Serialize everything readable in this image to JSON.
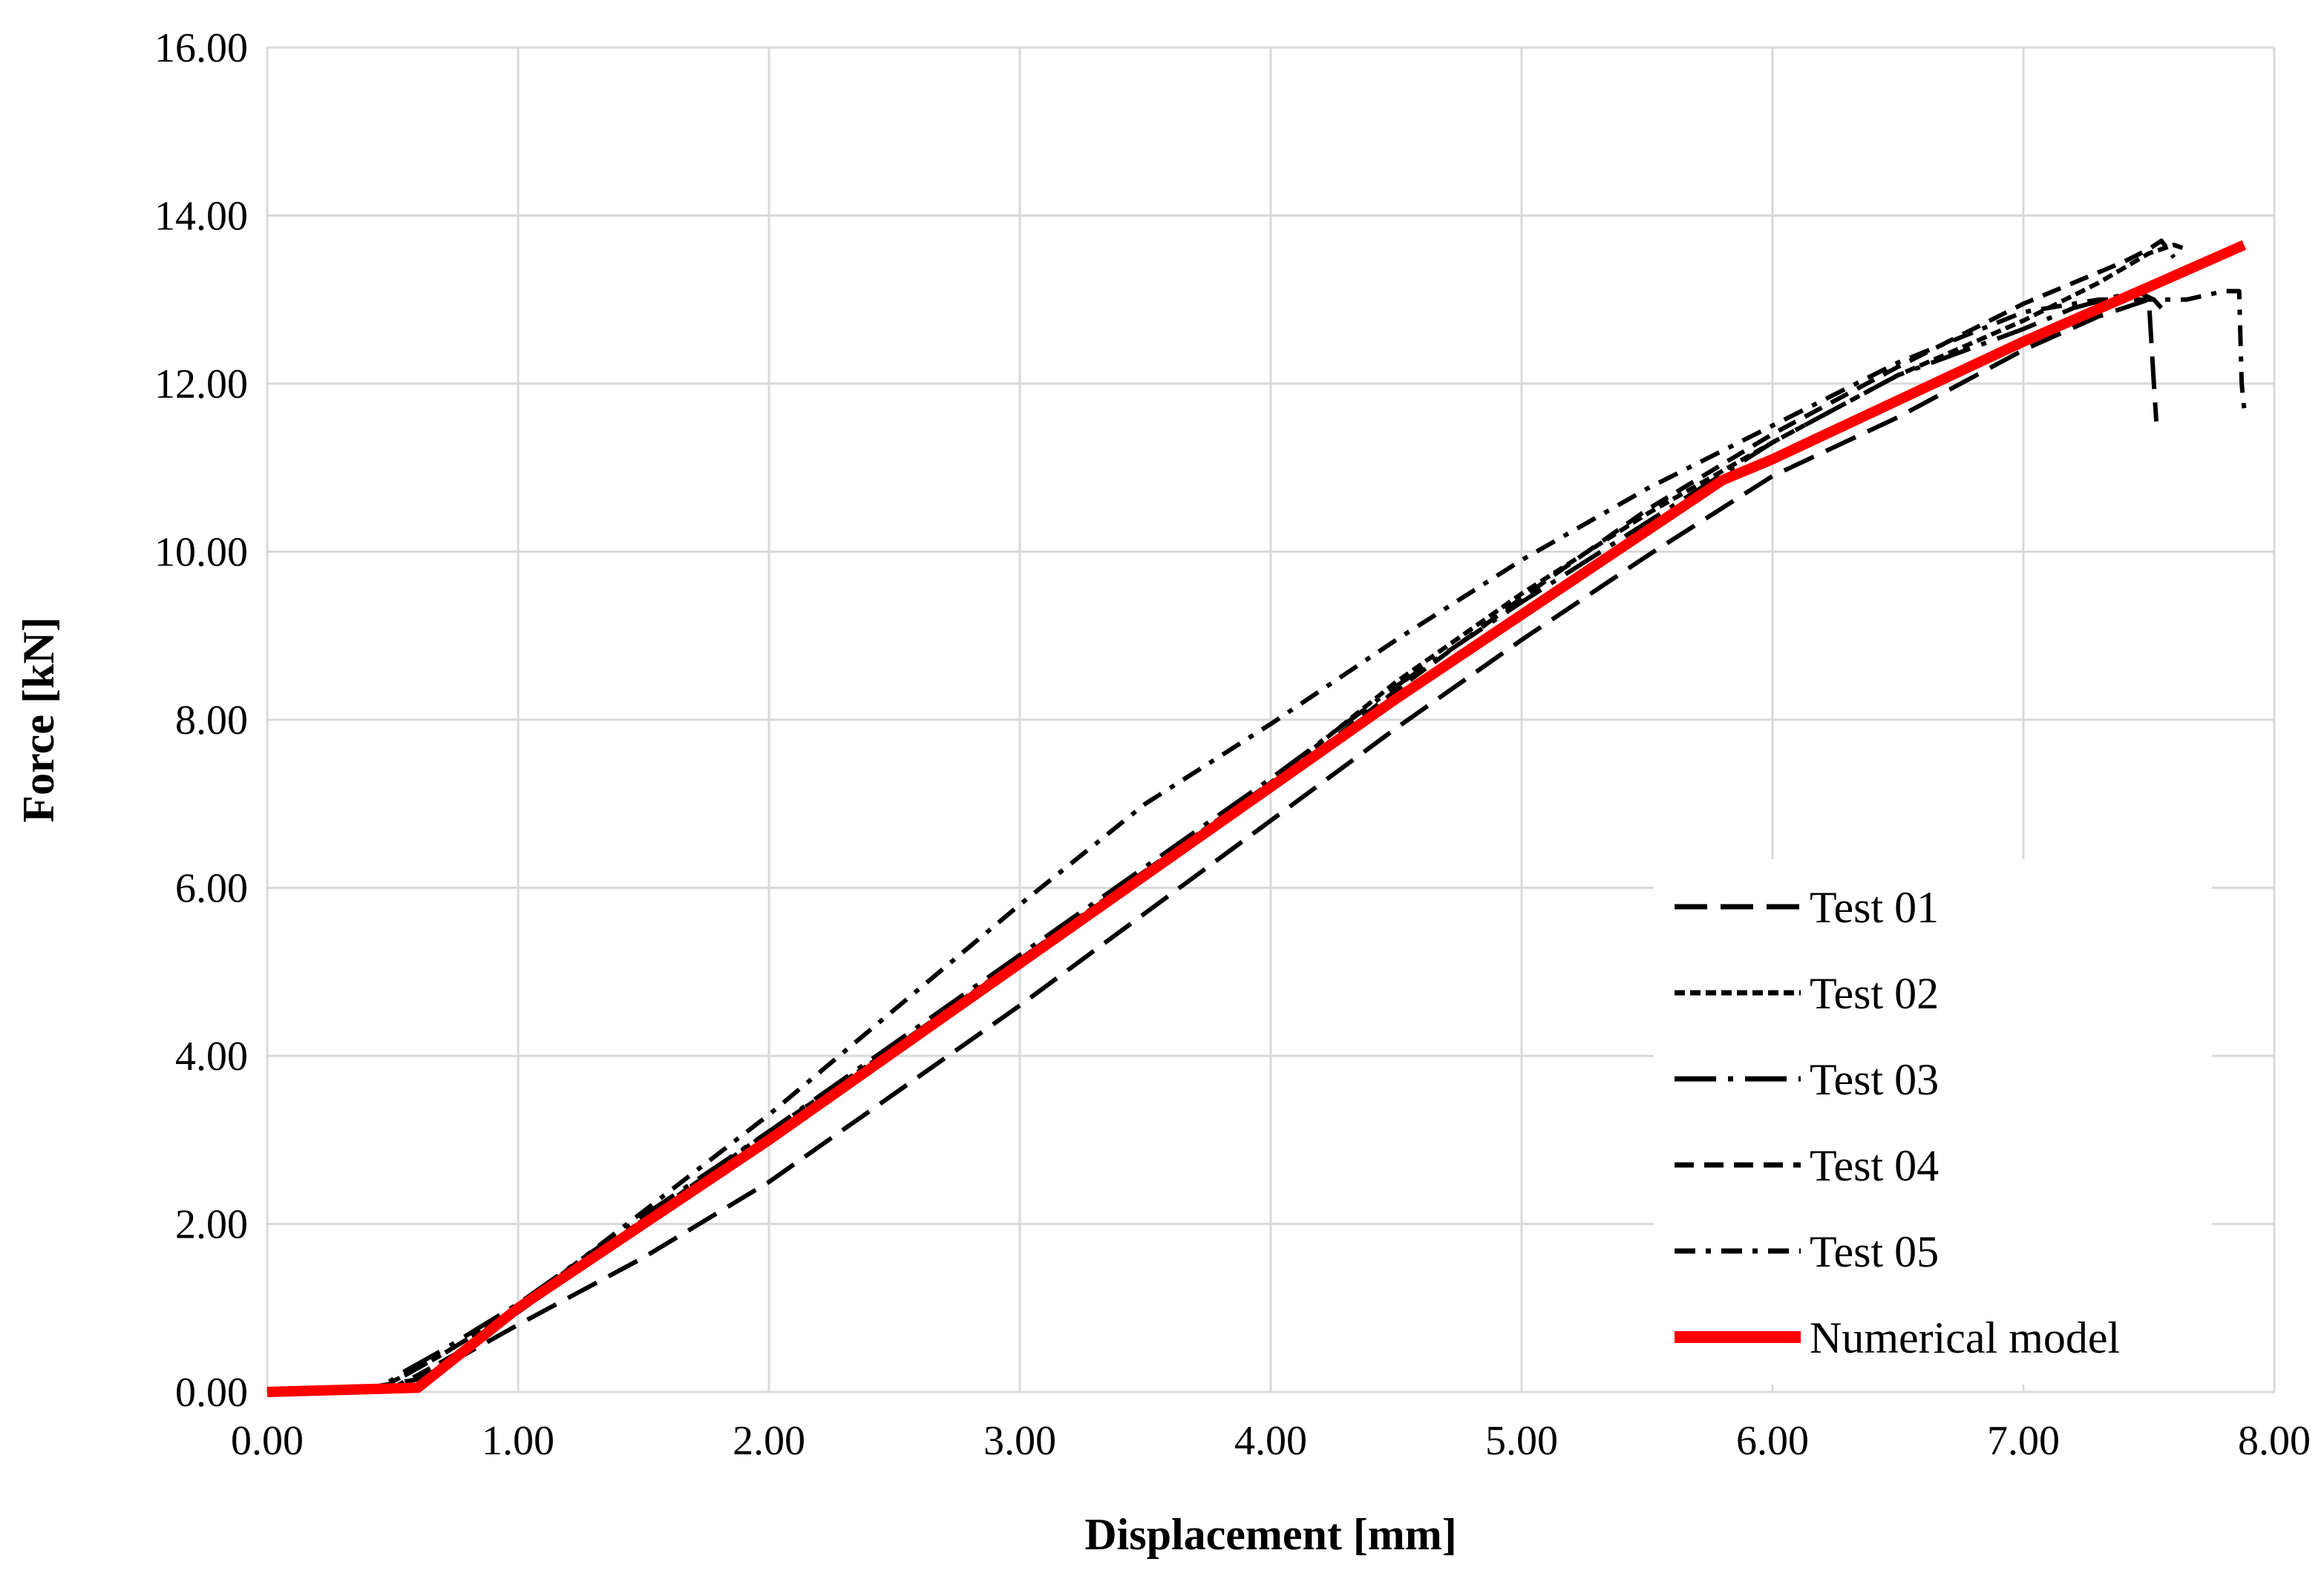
{
  "chart_data": {
    "type": "line",
    "title": "",
    "xlabel": "Displacement [mm]",
    "ylabel": "Force [kN]",
    "xlim": [
      0,
      8
    ],
    "ylim": [
      0,
      16
    ],
    "x_ticks": [
      "0.00",
      "1.00",
      "2.00",
      "3.00",
      "4.00",
      "5.00",
      "6.00",
      "7.00",
      "8.00"
    ],
    "y_ticks": [
      "0.00",
      "2.00",
      "4.00",
      "6.00",
      "8.00",
      "10.00",
      "12.00",
      "14.00",
      "16.00"
    ],
    "grid": true,
    "legend_position": "bottom-right",
    "series": [
      {
        "name": "Test 01",
        "color": "#000000",
        "dash": "long-dash",
        "x": [
          0.0,
          0.4,
          0.5,
          0.6,
          0.7,
          1.0,
          1.5,
          2.0,
          2.5,
          3.0,
          3.5,
          4.0,
          4.5,
          5.0,
          5.5,
          6.0,
          6.5,
          7.0,
          7.3,
          7.5,
          7.52,
          7.53
        ],
        "y": [
          0.0,
          0.05,
          0.1,
          0.15,
          0.3,
          0.8,
          1.6,
          2.5,
          3.55,
          4.6,
          5.7,
          6.8,
          7.9,
          8.95,
          9.95,
          10.9,
          11.6,
          12.4,
          12.8,
          13.0,
          12.0,
          11.55
        ]
      },
      {
        "name": "Test 02",
        "color": "#000000",
        "dash": "short-dash",
        "x": [
          0.0,
          0.45,
          0.55,
          0.7,
          1.0,
          1.5,
          2.0,
          2.5,
          3.0,
          3.5,
          4.0,
          4.5,
          5.0,
          5.5,
          6.0,
          6.5,
          7.0,
          7.3,
          7.5,
          7.6,
          7.65
        ],
        "y": [
          0.0,
          0.05,
          0.2,
          0.45,
          1.0,
          2.05,
          3.1,
          4.1,
          5.15,
          6.2,
          7.25,
          8.45,
          9.5,
          10.45,
          11.3,
          12.1,
          12.75,
          13.2,
          13.55,
          13.65,
          13.6
        ]
      },
      {
        "name": "Test 03",
        "color": "#000000",
        "dash": "long-dash-dot",
        "x": [
          0.0,
          0.45,
          0.55,
          0.7,
          1.0,
          1.5,
          2.0,
          2.5,
          3.0,
          3.5,
          4.0,
          4.5,
          5.0,
          5.5,
          6.0,
          6.5,
          7.0,
          7.2,
          7.45,
          7.52,
          7.55
        ],
        "y": [
          0.0,
          0.05,
          0.25,
          0.5,
          1.05,
          2.1,
          3.1,
          4.15,
          5.2,
          6.25,
          7.3,
          8.4,
          9.4,
          10.35,
          11.3,
          12.1,
          12.65,
          12.9,
          13.1,
          13.0,
          12.9
        ]
      },
      {
        "name": "Test 04",
        "color": "#000000",
        "dash": "medium-dash",
        "x": [
          0.0,
          0.5,
          0.6,
          0.75,
          1.0,
          1.5,
          2.0,
          2.5,
          3.0,
          3.5,
          4.0,
          4.5,
          5.0,
          5.5,
          6.0,
          6.5,
          7.0,
          7.4,
          7.5,
          7.55,
          7.6
        ],
        "y": [
          0.0,
          0.05,
          0.2,
          0.45,
          0.95,
          2.0,
          3.05,
          4.05,
          5.1,
          6.15,
          7.2,
          8.35,
          9.45,
          10.5,
          11.4,
          12.2,
          12.95,
          13.45,
          13.6,
          13.7,
          13.5
        ]
      },
      {
        "name": "Test 05",
        "color": "#000000",
        "dash": "dash-dot",
        "x": [
          0.0,
          0.45,
          0.55,
          0.7,
          1.0,
          1.5,
          2.0,
          2.5,
          3.0,
          3.5,
          4.0,
          4.5,
          5.0,
          5.5,
          6.0,
          6.5,
          7.0,
          7.3,
          7.5,
          7.65,
          7.8,
          7.86,
          7.87,
          7.88
        ],
        "y": [
          0.0,
          0.05,
          0.2,
          0.45,
          1.0,
          2.15,
          3.3,
          4.55,
          5.8,
          7.0,
          7.95,
          8.95,
          9.9,
          10.75,
          11.5,
          12.25,
          12.85,
          13.0,
          13.0,
          13.0,
          13.1,
          13.1,
          12.0,
          11.7
        ]
      },
      {
        "name": "Numerical model",
        "color": "#ff0000",
        "dash": "solid",
        "x": [
          0.0,
          0.6,
          1.0,
          1.5,
          2.0,
          2.5,
          3.0,
          3.5,
          4.0,
          4.5,
          5.0,
          5.5,
          5.8,
          6.0,
          6.5,
          7.0,
          7.5,
          7.88
        ],
        "y": [
          0.0,
          0.05,
          1.0,
          2.0,
          3.0,
          4.05,
          5.1,
          6.15,
          7.2,
          8.25,
          9.25,
          10.25,
          10.85,
          11.1,
          11.8,
          12.5,
          13.15,
          13.65
        ]
      }
    ]
  }
}
